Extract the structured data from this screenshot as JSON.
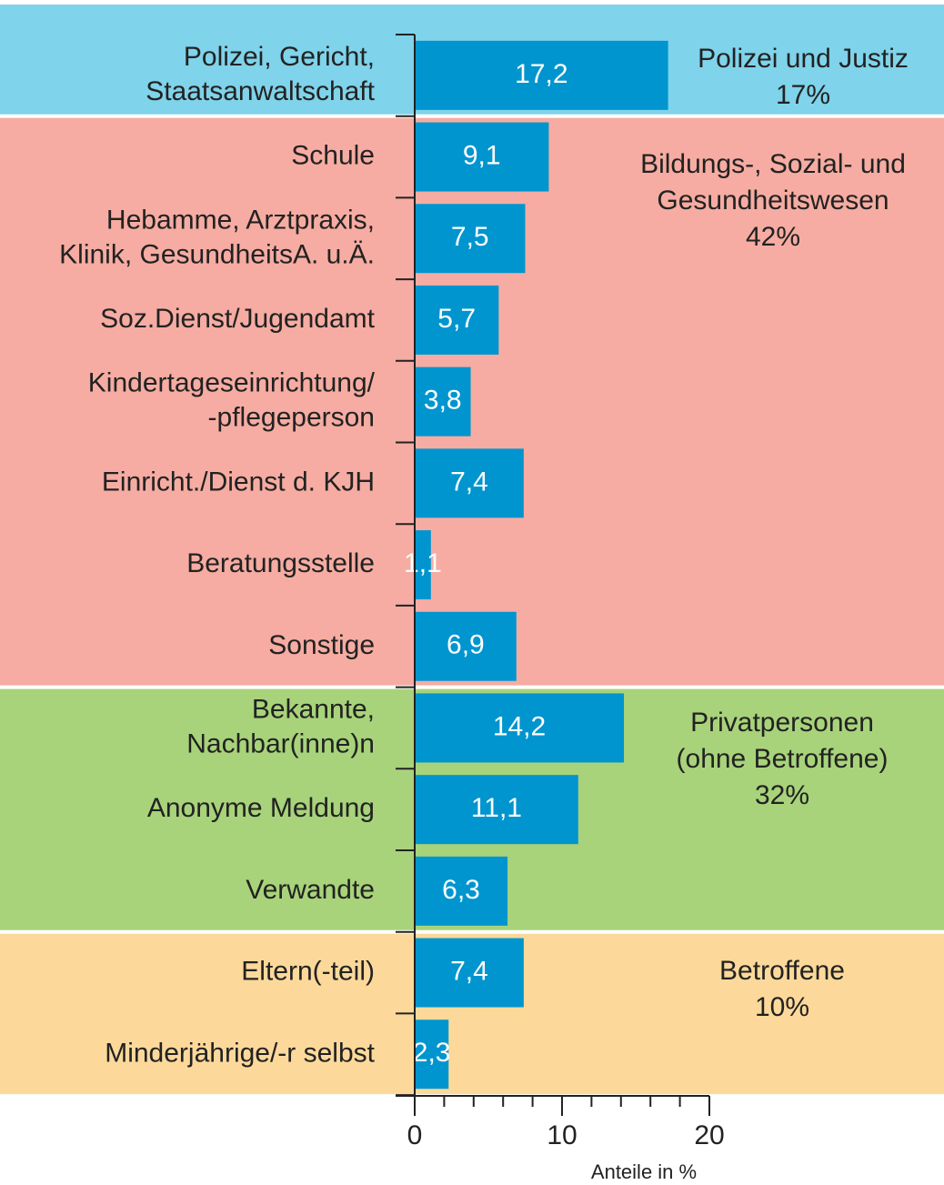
{
  "chart_data": {
    "type": "bar",
    "orientation": "horizontal",
    "x_label": "Anteile in %",
    "xlim": [
      0,
      20
    ],
    "xticks": [
      0,
      10,
      20
    ],
    "xticks_minor": [
      2,
      4,
      6,
      8,
      12,
      14,
      16,
      18
    ],
    "bar_color": "#0095cf",
    "groups": [
      {
        "name": [
          "Polizei und Justiz"
        ],
        "share": {
          "value": 17,
          "label": "17%"
        },
        "color": "#7fd3ea",
        "categories": [
          [
            "Polizei, Gericht,",
            "Staatsanwaltschaft"
          ]
        ],
        "values": [
          17.2
        ],
        "value_labels": [
          "17,2"
        ]
      },
      {
        "name": [
          "Bildungs-, Sozial- und",
          "Gesundheitswesen"
        ],
        "share": {
          "value": 42,
          "label": "42%"
        },
        "color": "#f6aca2",
        "categories": [
          [
            "Schule"
          ],
          [
            "Hebamme, Arztpraxis,",
            "Klinik, GesundheitsA. u.Ä."
          ],
          [
            "Soz.Dienst/Jugendamt"
          ],
          [
            "Kindertageseinrichtung/",
            "-pflegeperson"
          ],
          [
            "Einricht./Dienst d. KJH"
          ],
          [
            "Beratungsstelle"
          ],
          [
            "Sonstige"
          ]
        ],
        "values": [
          9.1,
          7.5,
          5.7,
          3.8,
          7.4,
          1.1,
          6.9
        ],
        "value_labels": [
          "9,1",
          "7,5",
          "5,7",
          "3,8",
          "7,4",
          "1,1",
          "6,9"
        ]
      },
      {
        "name": [
          "Privatpersonen",
          "(ohne Betroffene)"
        ],
        "share": {
          "value": 32,
          "label": "32%"
        },
        "color": "#a8d37a",
        "categories": [
          [
            "Bekannte,",
            "Nachbar(inne)n"
          ],
          [
            "Anonyme Meldung"
          ],
          [
            "Verwandte"
          ]
        ],
        "values": [
          14.2,
          11.1,
          6.3
        ],
        "value_labels": [
          "14,2",
          "11,1",
          "6,3"
        ]
      },
      {
        "name": [
          "Betroffene"
        ],
        "share": {
          "value": 10,
          "label": "10%"
        },
        "color": "#fcd99a",
        "categories": [
          [
            "Eltern(-teil)"
          ],
          [
            "Minderjährige/-r selbst"
          ]
        ],
        "values": [
          7.4,
          2.3
        ],
        "value_labels": [
          "7,4",
          "2,3"
        ]
      }
    ]
  }
}
